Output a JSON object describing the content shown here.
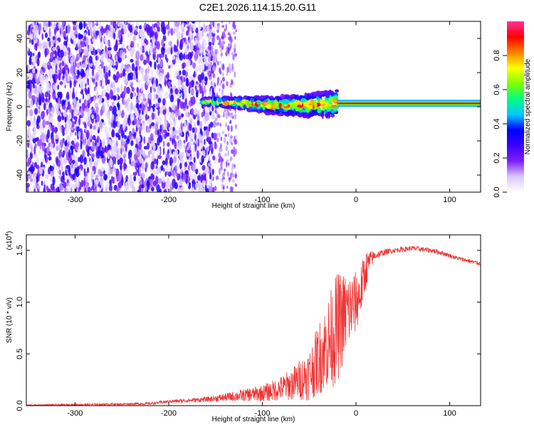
{
  "figure_title": "C2E1.2026.114.15.20.G11",
  "chart_data": [
    {
      "type": "heatmap",
      "name": "spectrogram",
      "title": "C2E1.2026.114.15.20.G11",
      "xlabel": "Height of straight line (km)",
      "ylabel": "Frequency (Hz)",
      "xlim": [
        -352,
        133
      ],
      "ylim": [
        -50,
        50
      ],
      "x_ticks": [
        -300,
        -200,
        -100,
        0,
        100
      ],
      "y_ticks": [
        -40,
        -20,
        0,
        20,
        40
      ],
      "x_tick_labels": [
        "-300",
        "-200",
        "-100",
        "0",
        "100"
      ],
      "y_tick_labels": [
        "-40",
        "-20",
        "0",
        "20",
        "40"
      ],
      "colorbar": {
        "label": "Normalized spectral amplitude",
        "range": [
          0,
          1
        ],
        "ticks": [
          0.0,
          0.2,
          0.4,
          0.6,
          0.8
        ],
        "tick_labels": [
          "0.0",
          "0.2",
          "0.4",
          "0.6",
          "0.8"
        ],
        "colormap": [
          "#ffffff",
          "#d9c8ff",
          "#7f1fff",
          "#3a00ff",
          "#0000ff",
          "#00c8ff",
          "#00ff80",
          "#80ff00",
          "#ffff00",
          "#ff8000",
          "#ff0000",
          "#ff3399"
        ]
      },
      "regions": [
        {
          "description": "broadband noise",
          "x_range": [
            -352,
            -150
          ],
          "freq_range": [
            -50,
            50
          ],
          "amplitude": 0.25
        },
        {
          "description": "sparse noise",
          "x_range": [
            -150,
            -128
          ],
          "freq_range": [
            -50,
            50
          ],
          "amplitude": 0.1
        },
        {
          "description": "developing signal",
          "x_range": [
            -165,
            -20
          ],
          "freq_center": 3,
          "amplitude": 0.45
        },
        {
          "description": "stable carrier",
          "x_range": [
            -20,
            133
          ],
          "freq_center": 2,
          "amplitude": 1.0
        }
      ]
    },
    {
      "type": "line",
      "name": "snr",
      "title": "",
      "xlabel": "Height of straight line (km)",
      "ylabel": "SNR (10 * v/v)",
      "y_multiplier": "(x10",
      "y_multiplier_exp": "4",
      "y_multiplier_close": ")",
      "xlim": [
        -352,
        133
      ],
      "ylim": [
        0,
        1.65
      ],
      "x_ticks": [
        -300,
        -200,
        -100,
        0,
        100
      ],
      "y_ticks": [
        0.0,
        0.5,
        1.0,
        1.5
      ],
      "x_tick_labels": [
        "-300",
        "-200",
        "-100",
        "0",
        "100"
      ],
      "y_tick_labels": [
        "0.0",
        "0.5",
        "1.0",
        "1.5"
      ],
      "series_color": "#ee3333",
      "series": [
        {
          "name": "SNR",
          "x": [
            -352,
            -300,
            -250,
            -220,
            -200,
            -180,
            -160,
            -140,
            -120,
            -100,
            -90,
            -80,
            -70,
            -60,
            -50,
            -40,
            -30,
            -20,
            -10,
            0,
            5,
            10,
            15,
            20,
            30,
            40,
            50,
            60,
            70,
            80,
            90,
            100,
            110,
            120,
            133
          ],
          "y": [
            0.005,
            0.01,
            0.015,
            0.02,
            0.04,
            0.05,
            0.06,
            0.08,
            0.1,
            0.12,
            0.14,
            0.17,
            0.2,
            0.25,
            0.3,
            0.45,
            0.6,
            0.75,
            0.9,
            1.0,
            1.1,
            1.3,
            1.4,
            1.45,
            1.48,
            1.5,
            1.51,
            1.52,
            1.51,
            1.5,
            1.48,
            1.45,
            1.42,
            1.4,
            1.37
          ],
          "noise_envelope": [
            0.005,
            0.008,
            0.01,
            0.012,
            0.015,
            0.02,
            0.025,
            0.04,
            0.06,
            0.08,
            0.1,
            0.12,
            0.15,
            0.2,
            0.25,
            0.35,
            0.45,
            0.55,
            0.4,
            0.3,
            0.25,
            0.2,
            0.1,
            0.04,
            0.03,
            0.025,
            0.025,
            0.025,
            0.025,
            0.025,
            0.025,
            0.02,
            0.02,
            0.02,
            0.02
          ]
        }
      ]
    }
  ]
}
